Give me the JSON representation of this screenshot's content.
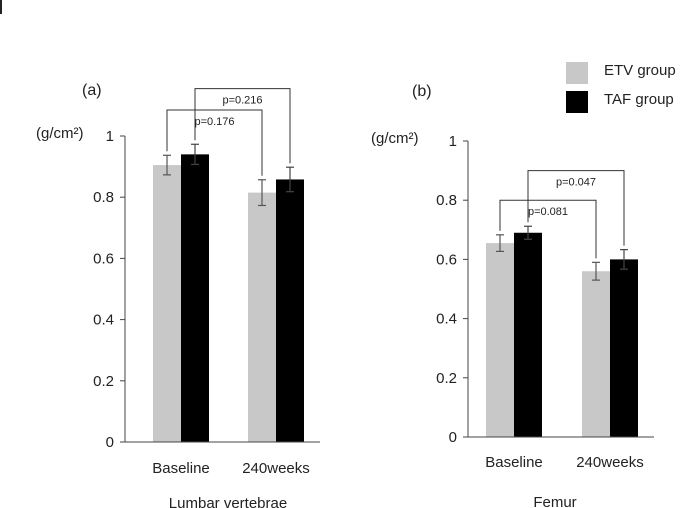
{
  "legend": {
    "items": [
      {
        "label": "ETV group",
        "color": "#c8c8c8"
      },
      {
        "label": "TAF group",
        "color": "#000000"
      }
    ]
  },
  "chart_data": [
    {
      "type": "bar",
      "panel_label": "(a)",
      "unit_label": "(g/cm²)",
      "xlabel": "Lumbar vertebrae",
      "categories": [
        "Baseline",
        "240weeks"
      ],
      "series": [
        {
          "name": "ETV group",
          "color": "#c8c8c8",
          "values": [
            0.905,
            0.815
          ],
          "errors": [
            0.032,
            0.042
          ]
        },
        {
          "name": "TAF group",
          "color": "#000000",
          "values": [
            0.94,
            0.858
          ],
          "errors": [
            0.033,
            0.04
          ]
        }
      ],
      "ylim": [
        0,
        1
      ],
      "yticks": [
        "0",
        "0.2",
        "0.4",
        "0.6",
        "0.8",
        "1"
      ],
      "grid": false,
      "annotations": [
        {
          "text": "p=0.176",
          "from_bar": [
            0,
            0
          ],
          "to_bar": [
            1,
            0
          ],
          "level": 1.085
        },
        {
          "text": "p=0.216",
          "from_bar": [
            0,
            1
          ],
          "to_bar": [
            1,
            1
          ],
          "level": 1.155
        }
      ]
    },
    {
      "type": "bar",
      "panel_label": "(b)",
      "unit_label": "(g/cm²)",
      "xlabel": "Femur",
      "categories": [
        "Baseline",
        "240weeks"
      ],
      "series": [
        {
          "name": "ETV group",
          "color": "#c8c8c8",
          "values": [
            0.655,
            0.56
          ],
          "errors": [
            0.028,
            0.03
          ]
        },
        {
          "name": "TAF group",
          "color": "#000000",
          "values": [
            0.69,
            0.6
          ],
          "errors": [
            0.022,
            0.033
          ]
        }
      ],
      "ylim": [
        0,
        1
      ],
      "yticks": [
        "0",
        "0.2",
        "0.4",
        "0.6",
        "0.8",
        "1"
      ],
      "grid": false,
      "annotations": [
        {
          "text": "p=0.081",
          "from_bar": [
            0,
            0
          ],
          "to_bar": [
            1,
            0
          ],
          "level": 0.8
        },
        {
          "text": "p=0.047",
          "from_bar": [
            0,
            1
          ],
          "to_bar": [
            1,
            1
          ],
          "level": 0.9
        }
      ]
    }
  ]
}
